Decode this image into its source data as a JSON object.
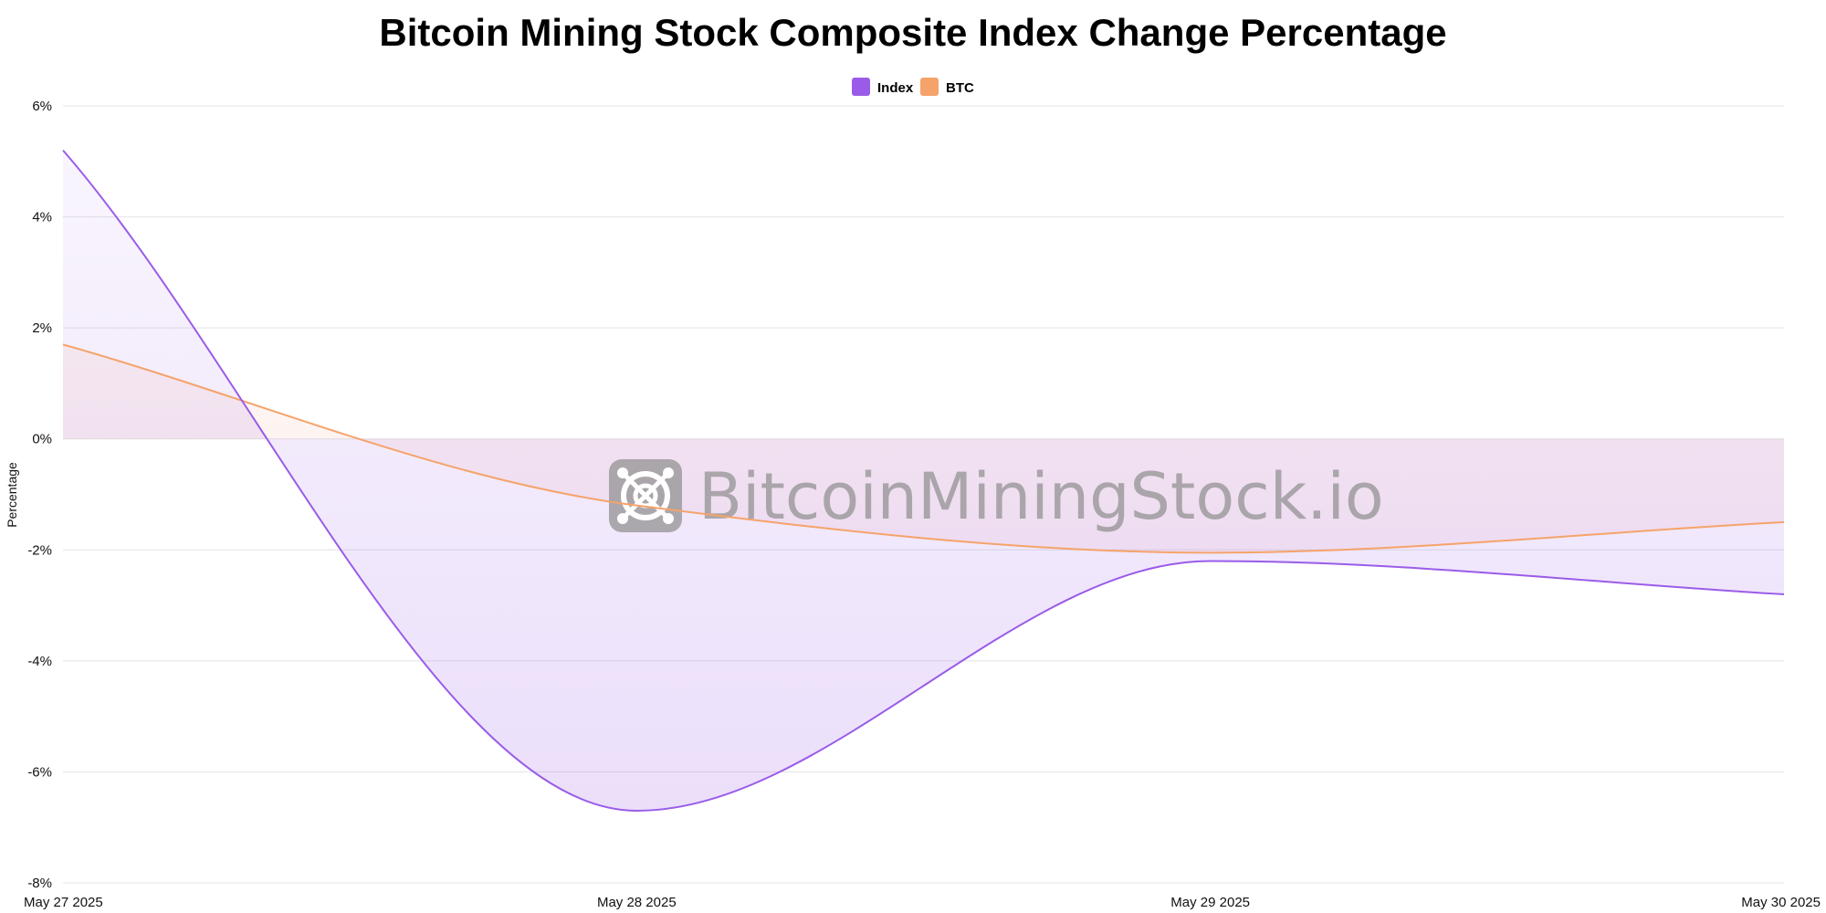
{
  "chart_data": {
    "type": "area",
    "title": "Bitcoin Mining Stock Composite Index Change Percentage",
    "xlabel": "",
    "ylabel": "Percentage",
    "categories": [
      "May 27 2025",
      "May 28 2025",
      "May 29 2025",
      "May 30 2025"
    ],
    "series": [
      {
        "name": "Index",
        "values": [
          5.2,
          -6.7,
          -2.2,
          -2.8
        ],
        "color": "#9a5ce8"
      },
      {
        "name": "BTC",
        "values": [
          1.7,
          -1.2,
          -2.05,
          -1.5
        ],
        "color": "#f5a36a"
      }
    ],
    "ylim": [
      -8,
      6
    ],
    "yticks": [
      6,
      4,
      2,
      0,
      -2,
      -4,
      -6,
      -8
    ],
    "ytick_labels": [
      "6%",
      "4%",
      "2%",
      "0%",
      "-2%",
      "-4%",
      "-6%",
      "-8%"
    ],
    "grid": true,
    "legend_position": "top-center",
    "watermark": "BitcoinMiningStock.io"
  }
}
